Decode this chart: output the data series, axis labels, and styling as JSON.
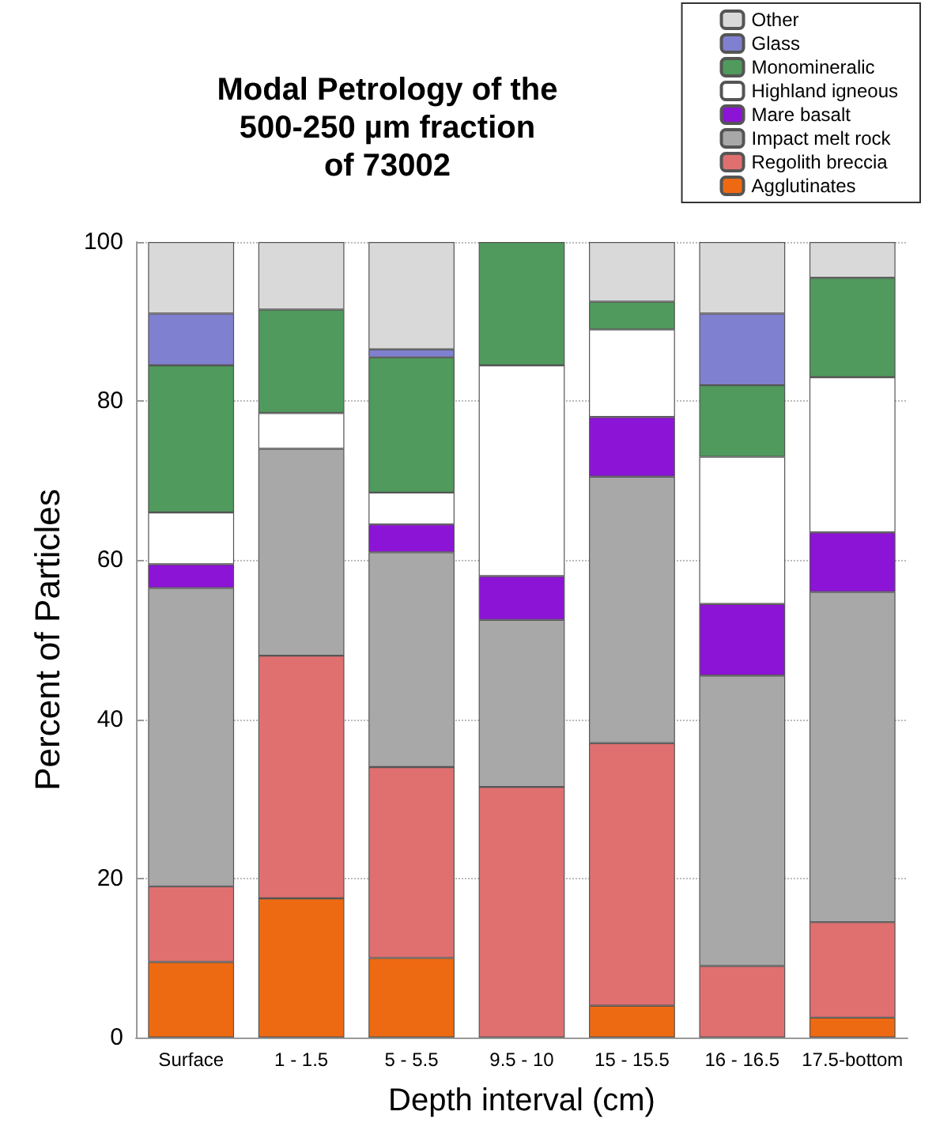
{
  "chart_data": {
    "type": "bar",
    "title": "Modal Petrology of the\n500-250 µm fraction\nof 73002",
    "xlabel": "Depth interval (cm)",
    "ylabel": "Percent of Particles",
    "categories": [
      "Surface",
      "1 - 1.5",
      "5 - 5.5",
      "9.5 - 10",
      "15 - 15.5",
      "16 - 16.5",
      "17.5-bottom"
    ],
    "stacked": true,
    "ylim": [
      0,
      100
    ],
    "yticks": [
      0,
      20,
      40,
      60,
      80,
      100
    ],
    "grid": "y",
    "legend": "top right",
    "series": [
      {
        "name": "Agglutinates",
        "color": "#ee6a12",
        "values": [
          9.5,
          17.5,
          10,
          0,
          4,
          0,
          2.5
        ]
      },
      {
        "name": "Regolith breccia",
        "color": "#e07070",
        "values": [
          9.5,
          30.5,
          24,
          31.5,
          33,
          9,
          12
        ]
      },
      {
        "name": "Impact melt rock",
        "color": "#a8a8a8",
        "values": [
          37.5,
          26,
          27,
          21,
          33.5,
          36.5,
          41.5
        ]
      },
      {
        "name": "Mare basalt",
        "color": "#8c14d6",
        "values": [
          3,
          0,
          3.5,
          5.5,
          7.5,
          9,
          7.5
        ]
      },
      {
        "name": "Highland igneous",
        "color": "#ffffff",
        "values": [
          6.5,
          4.5,
          4,
          26.5,
          11,
          18.5,
          19.5
        ]
      },
      {
        "name": "Monomineralic",
        "color": "#4f9a5c",
        "values": [
          18.5,
          13,
          17,
          15.5,
          3.5,
          9,
          12.5
        ]
      },
      {
        "name": "Glass",
        "color": "#8080d0",
        "values": [
          6.5,
          0,
          1,
          0,
          0,
          9,
          0
        ]
      },
      {
        "name": "Other",
        "color": "#d9d9d9",
        "values": [
          9,
          8.5,
          13.5,
          0,
          7.5,
          9,
          4.5
        ]
      }
    ]
  }
}
